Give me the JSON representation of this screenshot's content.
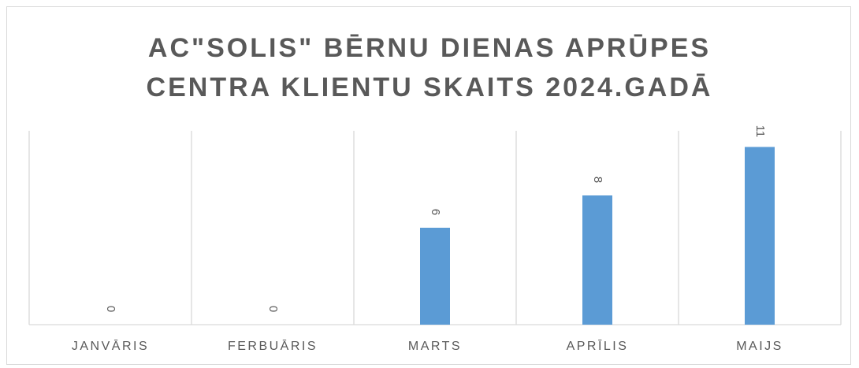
{
  "chart_data": {
    "type": "bar",
    "title": "AC\"SOLIS\" BĒRNU DIENAS APRŪPES CENTRA KLIENTU SKAITS 2024.GADĀ",
    "categories": [
      "JANVĀRIS",
      "FERBUĀRIS",
      "MARTS",
      "APRĪLIS",
      "MAIJS"
    ],
    "values": [
      0,
      0,
      6,
      8,
      11
    ],
    "color": "#5b9bd5",
    "ylim": [
      0,
      12
    ]
  }
}
